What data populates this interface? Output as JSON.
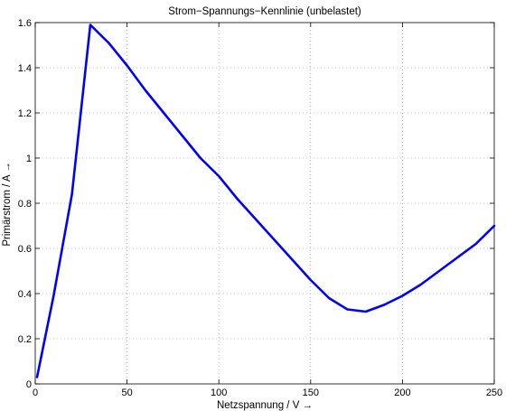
{
  "chart_data": {
    "type": "line",
    "title": "Strom−Spannungs−Kennlinie (unbelastet)",
    "xlabel": "Netzspannung / V →",
    "ylabel": "Primärstrom / A →",
    "xlim": [
      0,
      250
    ],
    "ylim": [
      0,
      1.6
    ],
    "xticks": [
      0,
      50,
      100,
      150,
      200,
      250
    ],
    "xtick_labels": [
      "0",
      "50",
      "100",
      "150",
      "200",
      "250"
    ],
    "yticks": [
      0,
      0.2,
      0.4,
      0.6,
      0.8,
      1,
      1.2,
      1.4,
      1.6
    ],
    "ytick_labels": [
      "0",
      "0.2",
      "0.4",
      "0.6",
      "0.8",
      "1",
      "1.2",
      "1.4",
      "1.6"
    ],
    "grid": true,
    "series": [
      {
        "color": "#0000ff",
        "x": [
          1,
          10,
          20,
          30,
          40,
          50,
          60,
          70,
          80,
          90,
          100,
          110,
          120,
          130,
          140,
          150,
          160,
          170,
          180,
          190,
          200,
          210,
          220,
          230,
          240,
          250
        ],
        "y": [
          0.03,
          0.39,
          0.84,
          1.59,
          1.51,
          1.41,
          1.3,
          1.2,
          1.1,
          1.0,
          0.92,
          0.82,
          0.73,
          0.64,
          0.55,
          0.46,
          0.38,
          0.33,
          0.32,
          0.35,
          0.39,
          0.44,
          0.5,
          0.56,
          0.62,
          0.7
        ]
      }
    ]
  }
}
